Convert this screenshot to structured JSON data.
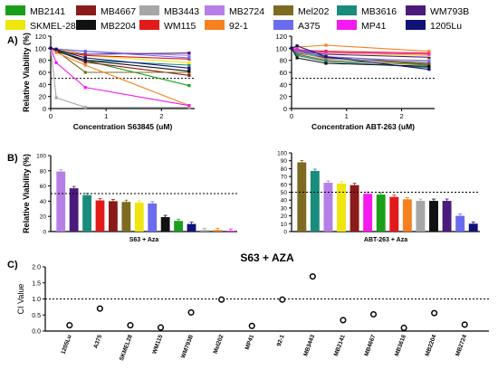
{
  "legend": [
    {
      "name": "MB2141",
      "color": "#1a9f1a"
    },
    {
      "name": "MB4667",
      "color": "#8b1a1a"
    },
    {
      "name": "MB3443",
      "color": "#a6a6a6"
    },
    {
      "name": "MB2724",
      "color": "#b57fe6"
    },
    {
      "name": "Mel202",
      "color": "#7d6b22"
    },
    {
      "name": "MB3616",
      "color": "#1a8c7c"
    },
    {
      "name": "WM793B",
      "color": "#4a1a7d"
    },
    {
      "name": "SKMEL-28",
      "color": "#f0e60f"
    },
    {
      "name": "MB2204",
      "color": "#111111"
    },
    {
      "name": "WM115",
      "color": "#e31a1a"
    },
    {
      "name": "92-1",
      "color": "#f5821f"
    },
    {
      "name": "A375",
      "color": "#6b6bf0"
    },
    {
      "name": "MP41",
      "color": "#f51af0"
    },
    {
      "name": "1205Lu",
      "color": "#111177"
    }
  ],
  "panels": {
    "a": "A)",
    "b": "B)",
    "c": "C)"
  },
  "chart_data": [
    {
      "type": "line",
      "panel": "A-left",
      "xlabel": "Concentration S63845 (uM)",
      "ylabel": "Relative Viability (%)",
      "xlim": [
        0,
        2.6
      ],
      "ylim": [
        0,
        120
      ],
      "xticks": [
        "0",
        "1",
        "2"
      ],
      "yticks": [
        "0",
        "20",
        "40",
        "60",
        "80",
        "100",
        "120"
      ],
      "reference_line": 50,
      "x": [
        0,
        0.1,
        0.625,
        2.5
      ],
      "series": [
        {
          "name": "MB2141",
          "values": [
            100,
            97,
            80,
            38
          ]
        },
        {
          "name": "MB4667",
          "values": [
            100,
            97,
            77,
            55
          ]
        },
        {
          "name": "MB3443",
          "values": [
            100,
            18,
            2,
            2
          ]
        },
        {
          "name": "MB2724",
          "values": [
            100,
            98,
            95,
            88
          ]
        },
        {
          "name": "Mel202",
          "values": [
            100,
            96,
            60,
            60
          ]
        },
        {
          "name": "MB3616",
          "values": [
            100,
            97,
            80,
            72
          ]
        },
        {
          "name": "WM793B",
          "values": [
            100,
            98,
            90,
            92
          ]
        },
        {
          "name": "SKMEL-28",
          "values": [
            100,
            99,
            88,
            76
          ]
        },
        {
          "name": "MB2204",
          "values": [
            100,
            95,
            80,
            62
          ]
        },
        {
          "name": "WM115",
          "values": [
            100,
            96,
            88,
            82
          ]
        },
        {
          "name": "92-1",
          "values": [
            100,
            93,
            72,
            5
          ]
        },
        {
          "name": "A375",
          "values": [
            100,
            99,
            95,
            84
          ]
        },
        {
          "name": "MP41",
          "values": [
            100,
            76,
            35,
            5
          ]
        },
        {
          "name": "1205Lu",
          "values": [
            100,
            98,
            84,
            67
          ]
        }
      ]
    },
    {
      "type": "line",
      "panel": "A-right",
      "xlabel": "Concentration ABT-263 (uM)",
      "ylabel": "",
      "xlim": [
        0,
        2.6
      ],
      "ylim": [
        0,
        120
      ],
      "xticks": [
        "0",
        "1",
        "2"
      ],
      "yticks": [
        "0",
        "20",
        "40",
        "60",
        "80",
        "100",
        "120"
      ],
      "reference_line": 50,
      "x": [
        0,
        0.1,
        0.625,
        2.5
      ],
      "series": [
        {
          "name": "MB2141",
          "values": [
            100,
            95,
            85,
            73
          ]
        },
        {
          "name": "MB4667",
          "values": [
            100,
            92,
            84,
            75
          ]
        },
        {
          "name": "MB3443",
          "values": [
            100,
            94,
            82,
            80
          ]
        },
        {
          "name": "MB2724",
          "values": [
            100,
            98,
            92,
            88
          ]
        },
        {
          "name": "Mel202",
          "values": [
            100,
            90,
            80,
            72
          ]
        },
        {
          "name": "MB3616",
          "values": [
            100,
            88,
            78,
            68
          ]
        },
        {
          "name": "WM793B",
          "values": [
            100,
            96,
            90,
            85
          ]
        },
        {
          "name": "SKMEL-28",
          "values": [
            100,
            99,
            92,
            88
          ]
        },
        {
          "name": "MB2204",
          "values": [
            100,
            84,
            75,
            70
          ]
        },
        {
          "name": "WM115",
          "values": [
            100,
            97,
            95,
            92
          ]
        },
        {
          "name": "92-1",
          "values": [
            100,
            102,
            105,
            95
          ]
        },
        {
          "name": "A375",
          "values": [
            100,
            96,
            86,
            78
          ]
        },
        {
          "name": "MP41",
          "values": [
            100,
            98,
            93,
            90
          ]
        },
        {
          "name": "1205Lu",
          "values": [
            100,
            104,
            86,
            65
          ]
        }
      ]
    },
    {
      "type": "bar",
      "panel": "B-left",
      "xlabel": "S63 + Aza",
      "ylabel": "Relative Viability (%)",
      "ylim": [
        0,
        100
      ],
      "yticks": [
        "0",
        "20",
        "40",
        "60",
        "80",
        "100"
      ],
      "reference_line": 50,
      "categories": [
        "MB2724",
        "WM793B",
        "MB3616",
        "WM115",
        "MB4667",
        "Mel202",
        "SKMEL-28",
        "A375",
        "MB2204",
        "MB2141",
        "1205Lu",
        "MB3443",
        "92-1",
        "MP41"
      ],
      "values": [
        79,
        57,
        48,
        41,
        40,
        39,
        38,
        37,
        19,
        14,
        10,
        2,
        2,
        1
      ]
    },
    {
      "type": "bar",
      "panel": "B-right",
      "xlabel": "ABT-263 + Aza",
      "ylabel": "",
      "ylim": [
        0,
        100
      ],
      "yticks": [
        "0",
        "10",
        "20",
        "30",
        "40",
        "50",
        "60",
        "70",
        "80",
        "90",
        "100"
      ],
      "reference_line": 50,
      "categories": [
        "Mel202",
        "MB3616",
        "MB2724",
        "SKMEL-28",
        "MB4667",
        "MP41",
        "MB2141",
        "WM115",
        "92-1",
        "MB3443",
        "MB2204",
        "WM793B",
        "A375",
        "1205Lu"
      ],
      "values": [
        88,
        77,
        62,
        61,
        59,
        48,
        47,
        44,
        41,
        39,
        39,
        39,
        20,
        10
      ]
    },
    {
      "type": "scatter",
      "panel": "C",
      "title": "S63 + AZA",
      "ylabel": "CI Value",
      "ylim": [
        0,
        2.0
      ],
      "yticks": [
        "0.0",
        "0.5",
        "1.0",
        "1.5",
        "2.0"
      ],
      "reference_line": 1.0,
      "categories": [
        "1205Lu",
        "A375",
        "SKMEL28",
        "WM115",
        "WM793B",
        "Mel202",
        "MP41",
        "92-1",
        "MB3443",
        "MB2141",
        "MB4667",
        "MB3616",
        "MB2204",
        "MB2724"
      ],
      "values": [
        0.18,
        0.7,
        0.18,
        0.11,
        0.58,
        0.98,
        0.16,
        0.98,
        1.7,
        0.34,
        0.52,
        0.1,
        0.56,
        0.2
      ]
    }
  ]
}
